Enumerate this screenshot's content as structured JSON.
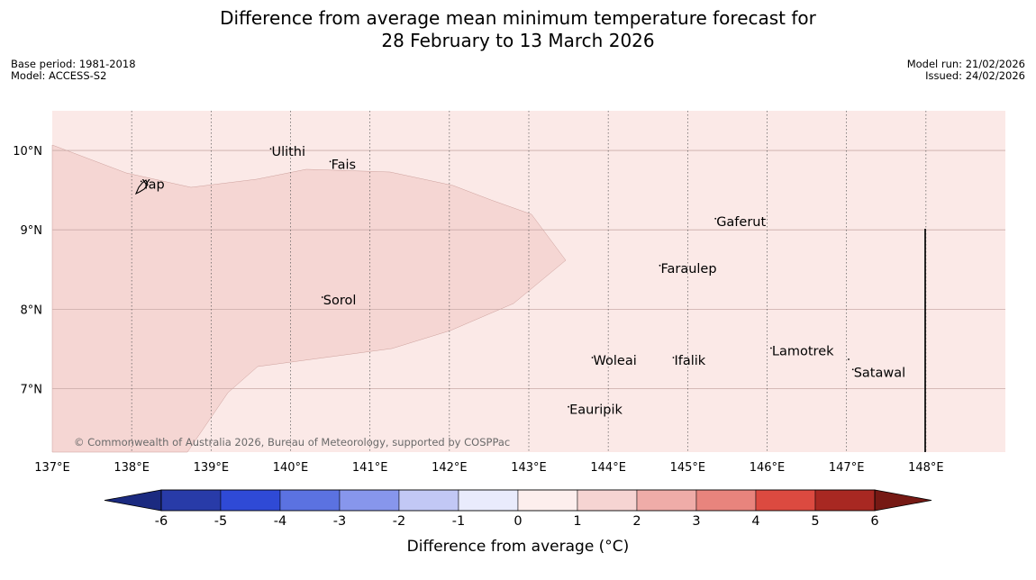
{
  "title": {
    "line1": "Difference from average mean minimum temperature forecast for",
    "line2": "28 February to 13 March 2026"
  },
  "meta_left": {
    "base_period": "Base period: 1981-2018",
    "model": "Model: ACCESS-S2"
  },
  "meta_right": {
    "model_run": "Model run: 21/02/2026",
    "issued": "Issued: 24/02/2026"
  },
  "copyright": "© Commonwealth of Australia 2026, Bureau of Meteorology, supported by COSPPac",
  "map": {
    "lon_range": [
      137,
      149
    ],
    "lat_range": [
      6.2,
      10.5
    ],
    "lon_ticks": [
      "137°E",
      "138°E",
      "139°E",
      "140°E",
      "141°E",
      "142°E",
      "143°E",
      "144°E",
      "145°E",
      "146°E",
      "147°E",
      "148°E"
    ],
    "lat_ticks": [
      "10°N",
      "9°N",
      "8°N",
      "7°N"
    ],
    "background_anomaly_color": "#fbe9e7",
    "warm_region_color": "#f5d6d3",
    "places": [
      {
        "name": "Ulithi",
        "lon": 139.75,
        "lat": 9.93
      },
      {
        "name": "Fais",
        "lon": 140.5,
        "lat": 9.77
      },
      {
        "name": "Yap",
        "lon": 138.12,
        "lat": 9.52
      },
      {
        "name": "Gaferut",
        "lon": 145.35,
        "lat": 9.05
      },
      {
        "name": "Faraulep",
        "lon": 144.65,
        "lat": 8.46
      },
      {
        "name": "Sorol",
        "lon": 140.4,
        "lat": 8.06
      },
      {
        "name": "Lamotrek",
        "lon": 146.05,
        "lat": 7.42
      },
      {
        "name": "Woleai",
        "lon": 143.8,
        "lat": 7.3
      },
      {
        "name": "Ifalik",
        "lon": 144.82,
        "lat": 7.3
      },
      {
        "name": "Satawal",
        "lon": 147.08,
        "lat": 7.15
      },
      {
        "name": "Eauripik",
        "lon": 143.5,
        "lat": 6.68
      }
    ]
  },
  "colorbar": {
    "label": "Difference from average (°C)",
    "ticks": [
      "-6",
      "-5",
      "-4",
      "-3",
      "-2",
      "-1",
      "0",
      "1",
      "2",
      "3",
      "4",
      "5",
      "6"
    ],
    "colors": [
      "#283ba8",
      "#2f4ad6",
      "#5b72e1",
      "#8796ec",
      "#c2c8f5",
      "#e9ebfc",
      "#fdeeed",
      "#f6d4d2",
      "#efaca8",
      "#e8847d",
      "#dc4a40",
      "#a82822"
    ],
    "under_color": "#1b2a80",
    "over_color": "#761914"
  }
}
